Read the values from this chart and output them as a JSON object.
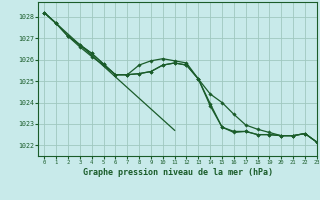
{
  "title": "Graphe pression niveau de la mer (hPa)",
  "background_color": "#c8eaea",
  "grid_color": "#a0c8c0",
  "line_color": "#1a5c2a",
  "xlim": [
    -0.5,
    23
  ],
  "ylim": [
    1021.5,
    1028.7
  ],
  "yticks": [
    1022,
    1023,
    1024,
    1025,
    1026,
    1027,
    1028
  ],
  "xticks": [
    0,
    1,
    2,
    3,
    4,
    5,
    6,
    7,
    8,
    9,
    10,
    11,
    12,
    13,
    14,
    15,
    16,
    17,
    18,
    19,
    20,
    21,
    22,
    23
  ],
  "series": [
    [
      1028.2,
      1027.7,
      1027.1,
      1026.7,
      1026.3,
      1025.8,
      1025.3,
      1025.3,
      1025.35,
      1025.45,
      1025.75,
      1025.85,
      1025.75,
      1025.1,
      1023.85,
      1022.85,
      1022.6,
      1022.65,
      1022.5,
      1022.5,
      1022.45,
      1022.45,
      1022.55,
      1022.15
    ],
    [
      1028.2,
      1027.7,
      1027.1,
      1026.7,
      1026.3,
      1025.8,
      1025.3,
      1025.3,
      1025.75,
      1025.95,
      1026.05,
      1025.95,
      1025.85,
      1025.1,
      1024.4,
      1024.0,
      1023.45,
      1022.95,
      1022.75,
      1022.6,
      1022.45,
      1022.45,
      1022.55,
      1022.15
    ],
    [
      1028.2,
      1027.7,
      1027.1,
      1026.6,
      1026.15,
      1025.75,
      1025.3,
      1025.3,
      1025.35,
      1025.45,
      1025.75,
      1025.85,
      1025.75,
      1025.1,
      1023.95,
      1022.85,
      1022.65,
      1022.65,
      1022.5,
      1022.5,
      1022.45,
      1022.45,
      1022.55,
      1022.15
    ]
  ],
  "straight_line": [
    1028.2,
    1027.7,
    1027.2,
    1026.7,
    1026.2,
    1025.7,
    1025.2,
    1024.7,
    1024.2,
    1023.7,
    1023.2,
    1022.7,
    null,
    null,
    null,
    null,
    null,
    null,
    null,
    null,
    null,
    null,
    null,
    null
  ]
}
